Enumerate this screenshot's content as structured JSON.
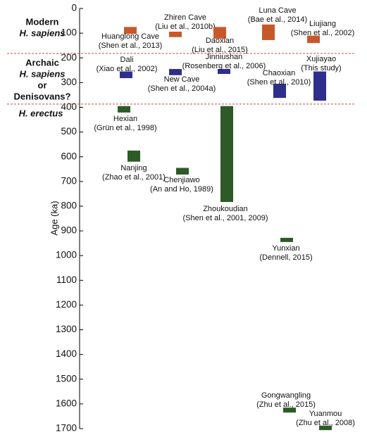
{
  "chart_data": {
    "type": "range",
    "y_label": "Age (ka)",
    "ylim": [
      0,
      1700
    ],
    "yticks": [
      0,
      100,
      200,
      300,
      400,
      500,
      600,
      700,
      800,
      900,
      1000,
      1100,
      1200,
      1300,
      1400,
      1500,
      1600,
      1700
    ],
    "inverted": true,
    "dividers": [
      182,
      387
    ],
    "divider_color": "#c0504d",
    "groups": [
      {
        "lines": [
          "Modern",
          "H. sapiens"
        ],
        "color": "#c8582a"
      },
      {
        "lines": [
          "Archaic",
          "H. sapiens",
          "or",
          "Denisovans?"
        ],
        "color": "#2e2e8c"
      },
      {
        "lines": [
          "H. erectus"
        ],
        "color": "#2d5a27"
      }
    ],
    "sites": [
      {
        "name": "Huanglong Cave",
        "citation": "(Shen et al., 2013)",
        "group": 0,
        "range": [
          75,
          103
        ]
      },
      {
        "name": "Zhiren Cave",
        "citation": "(Liu et al., 2010b)",
        "group": 0,
        "range": [
          94,
          116
        ]
      },
      {
        "name": "Daoxian",
        "citation": "(Liu et al., 2015)",
        "group": 0,
        "range": [
          75,
          122
        ]
      },
      {
        "name": "Luna Cave",
        "citation": "(Bae et al., 2014)",
        "group": 0,
        "range": [
          65,
          128
        ]
      },
      {
        "name": "Liujiang",
        "citation": "(Shen et al., 2002)",
        "group": 0,
        "range": [
          110,
          140
        ]
      },
      {
        "name": "Dali",
        "citation": "(Xiao et al., 2002)",
        "group": 1,
        "range": [
          255,
          282
        ]
      },
      {
        "name": "New Cave",
        "citation": "(Shen et al., 2004a)",
        "group": 1,
        "range": [
          245,
          270
        ]
      },
      {
        "name": "Jinniushan",
        "citation": "(Rosenberg et al., 2006)",
        "group": 1,
        "range": [
          245,
          265
        ]
      },
      {
        "name": "Chaoxian",
        "citation": "(Shen et al., 2010)",
        "group": 1,
        "range": [
          305,
          362
        ]
      },
      {
        "name": "Xujiayao",
        "citation": "(This study)",
        "group": 1,
        "range": [
          255,
          373
        ]
      },
      {
        "name": "Hexian",
        "citation": "(Grün et al., 1998)",
        "group": 2,
        "range": [
          395,
          421
        ]
      },
      {
        "name": "Nanjing",
        "citation": "(Zhao et al., 2001)",
        "group": 2,
        "range": [
          575,
          620
        ]
      },
      {
        "name": "Chenjiawo",
        "citation": "(An and Ho, 1989)",
        "group": 2,
        "range": [
          645,
          672
        ]
      },
      {
        "name": "Zhoukoudian",
        "citation": "(Shen et al., 2001, 2009)",
        "group": 2,
        "range": [
          395,
          783
        ]
      },
      {
        "name": "Yunxian",
        "citation": "(Dennell, 2015)",
        "group": 2,
        "range": [
          928,
          945
        ]
      },
      {
        "name": "Gongwangling",
        "citation": "(Zhu et al., 2015)",
        "group": 2,
        "range": [
          1615,
          1635
        ]
      },
      {
        "name": "Yuanmou",
        "citation": "(Zhu et al., 2008)",
        "group": 2,
        "range": [
          1688,
          1706
        ]
      }
    ]
  }
}
